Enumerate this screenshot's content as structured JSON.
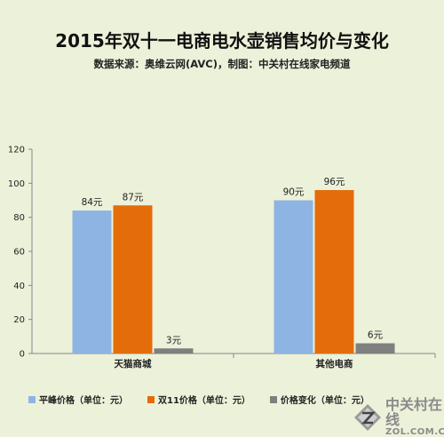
{
  "title": "2015年双十一电商电水壶销售均价与变化",
  "subtitle": "数据来源：奥维云网(AVC)，制图：中关村在线家电频道",
  "chart_data": {
    "type": "bar",
    "categories": [
      "天猫商城",
      "其他电商"
    ],
    "series": [
      {
        "name": "平峰价格（单位：元）",
        "values": [
          84,
          90
        ],
        "labels": [
          "84元",
          "90元"
        ],
        "color": "#8eb4e3"
      },
      {
        "name": "双11价格（单位：元）",
        "values": [
          87,
          96
        ],
        "labels": [
          "87元",
          "96元"
        ],
        "color": "#e46c0a"
      },
      {
        "name": "价格变化（单位：元）",
        "values": [
          3,
          6
        ],
        "labels": [
          "3元",
          "6元"
        ],
        "color": "#7f7f7f"
      }
    ],
    "ylim": [
      0,
      120
    ],
    "yticks": [
      0,
      20,
      40,
      60,
      80,
      100,
      120
    ],
    "grid": false,
    "legend_position": "bottom-left"
  },
  "watermark": {
    "text_cn": "中关村在线",
    "text_en": "ZOL.COM.CN"
  }
}
